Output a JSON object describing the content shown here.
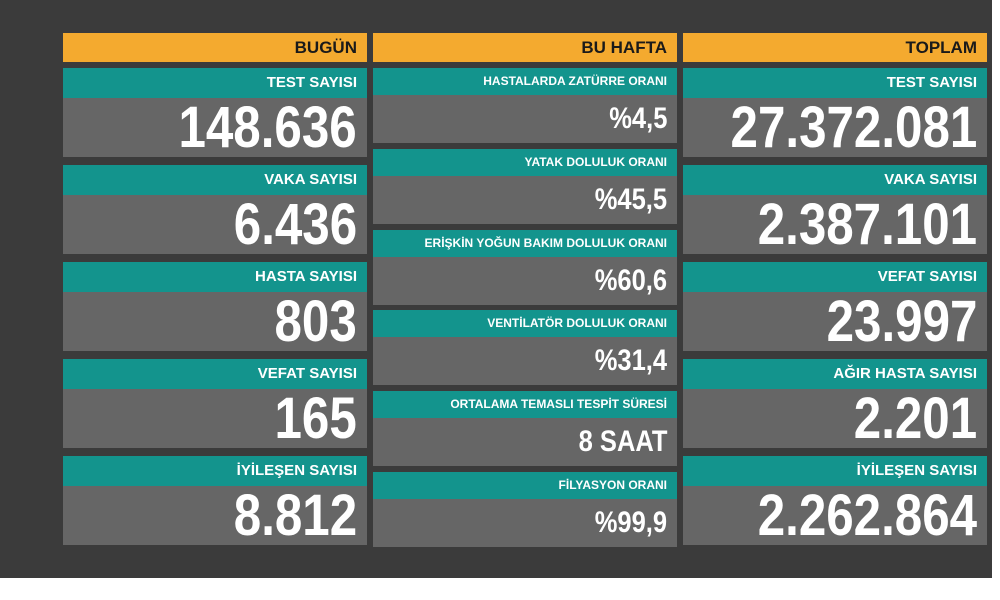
{
  "columns": [
    {
      "header": "BUGÜN",
      "rows": [
        {
          "label": "TEST SAYISI",
          "value": "148.636"
        },
        {
          "label": "VAKA SAYISI",
          "value": "6.436"
        },
        {
          "label": "HASTA SAYISI",
          "value": "803"
        },
        {
          "label": "VEFAT SAYISI",
          "value": "165"
        },
        {
          "label": "İYİLEŞEN SAYISI",
          "value": "8.812"
        }
      ]
    },
    {
      "header": "BU HAFTA",
      "rows": [
        {
          "label": "HASTALARDA ZATÜRRE ORANI",
          "value": "%4,5"
        },
        {
          "label": "YATAK DOLULUK ORANI",
          "value": "%45,5"
        },
        {
          "label": "ERİŞKİN YOĞUN BAKIM DOLULUK ORANI",
          "value": "%60,6"
        },
        {
          "label": "VENTİLATÖR DOLULUK ORANI",
          "value": "%31,4"
        },
        {
          "label": "ORTALAMA TEMASLI TESPİT SÜRESİ",
          "value": "8 SAAT"
        },
        {
          "label": "FİLYASYON ORANI",
          "value": "%99,9"
        }
      ]
    },
    {
      "header": "TOPLAM",
      "rows": [
        {
          "label": "TEST SAYISI",
          "value": "27.372.081"
        },
        {
          "label": "VAKA SAYISI",
          "value": "2.387.101"
        },
        {
          "label": "VEFAT SAYISI",
          "value": "23.997"
        },
        {
          "label": "AĞIR HASTA SAYISI",
          "value": "2.201"
        },
        {
          "label": "İYİLEŞEN SAYISI",
          "value": "2.262.864"
        }
      ]
    }
  ]
}
